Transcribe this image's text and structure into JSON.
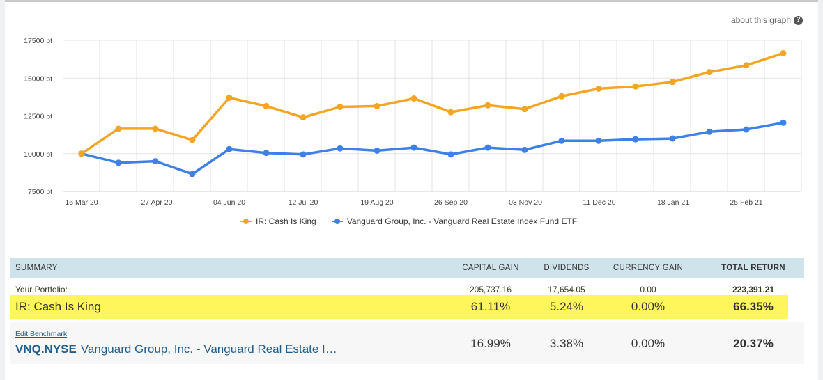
{
  "about_link": "about this graph",
  "about_icon": "question-circle-icon",
  "colors": {
    "orange": "#f3a523",
    "blue": "#3d80e8",
    "grid": "#e3e3e3",
    "header_bg": "#cfe3ea",
    "highlight": "#fef65b",
    "link": "#1f5e8c"
  },
  "chart_data": {
    "type": "line",
    "x": [
      "16 Mar 20",
      "03 Apr 20",
      "22 Apr 20",
      "11 May 20",
      "29 May 20",
      "17 Jun 20",
      "06 Jul 20",
      "24 Jul 20",
      "12 Aug 20",
      "31 Aug 20",
      "18 Sep 20",
      "07 Oct 20",
      "26 Oct 20",
      "13 Nov 20",
      "02 Dec 20",
      "21 Dec 20",
      "08 Jan 21",
      "27 Jan 21",
      "15 Feb 21",
      "06 Mar 21"
    ],
    "x_ticks": [
      "16 Mar 20",
      "27 Apr 20",
      "04 Jun 20",
      "12 Jul 20",
      "19 Aug 20",
      "26 Sep 20",
      "03 Nov 20",
      "11 Dec 20",
      "18 Jan 21",
      "25 Feb 21"
    ],
    "y_ticks": [
      "7500 pt",
      "10000 pt",
      "12500 pt",
      "15000 pt",
      "17500 pt"
    ],
    "ylim": [
      7500,
      17500
    ],
    "grid": true,
    "legend_position": "bottom-center",
    "series": [
      {
        "name": "IR: Cash Is King",
        "color": "#f3a523",
        "values": [
          10000,
          11650,
          11650,
          10900,
          13700,
          13150,
          12400,
          13100,
          13150,
          13650,
          12750,
          13200,
          12950,
          13800,
          14300,
          14450,
          14750,
          15400,
          15850,
          16650
        ]
      },
      {
        "name": "Vanguard Group, Inc. - Vanguard Real Estate Index Fund ETF",
        "color": "#3d80e8",
        "values": [
          10000,
          9400,
          9500,
          8650,
          10300,
          10050,
          9950,
          10350,
          10200,
          10400,
          9950,
          10400,
          10250,
          10850,
          10850,
          10950,
          11000,
          11450,
          11600,
          12050
        ]
      }
    ]
  },
  "summary": {
    "headers": {
      "summary": "SUMMARY",
      "capital_gain": "CAPITAL GAIN",
      "dividends": "DIVIDENDS",
      "currency_gain": "CURRENCY GAIN",
      "total_return": "TOTAL RETURN"
    },
    "portfolio": {
      "label": "Your Portfolio:",
      "capital_gain": "205,737.16",
      "dividends": "17,654.05",
      "currency_gain": "0.00",
      "total_return": "223,391.21"
    },
    "ir": {
      "label": "IR: Cash Is King",
      "capital_gain": "61.11%",
      "dividends": "5.24%",
      "currency_gain": "0.00%",
      "total_return": "66.35%"
    },
    "benchmark": {
      "edit_label": "Edit Benchmark",
      "ticker": "VNQ.NYSE",
      "name": "Vanguard Group, Inc. - Vanguard Real Estate I…",
      "capital_gain": "16.99%",
      "dividends": "3.38%",
      "currency_gain": "0.00%",
      "total_return": "20.37%"
    }
  }
}
